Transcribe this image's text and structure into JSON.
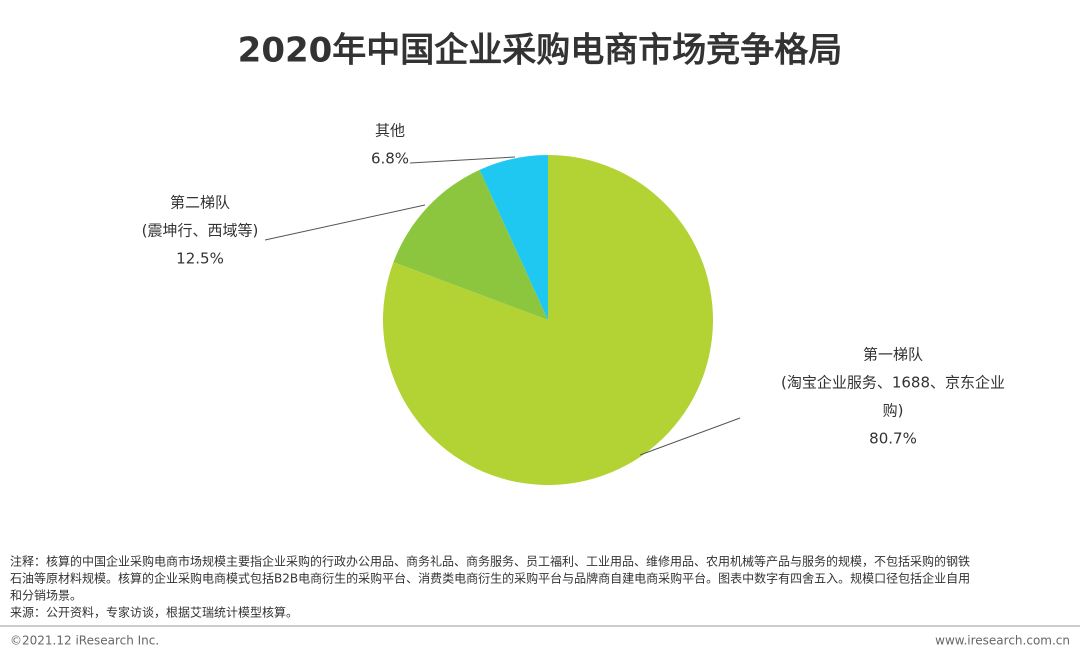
{
  "chart_data": {
    "type": "pie",
    "title": "2020年中国企业采购电商市场竞争格局",
    "categories": [
      "第一梯队",
      "第二梯队",
      "其他"
    ],
    "category_details": [
      [
        "(淘宝企业服务、1688、京东企业",
        "购)"
      ],
      [
        "(震坤行、西域等)"
      ],
      []
    ],
    "values": [
      80.7,
      12.5,
      6.8
    ],
    "value_labels": [
      "80.7%",
      "12.5%",
      "6.8%"
    ],
    "colors": [
      "#b3d234",
      "#8cc63f",
      "#1ec8f0"
    ]
  },
  "notes": [
    "注释：核算的中国企业采购电商市场规模主要指企业采购的行政办公用品、商务礼品、商务服务、员工福利、工业用品、维修用品、农用机械等产品与服务的规模，不包括采购的钢铁",
    "石油等原材料规模。核算的企业采购电商模式包括B2B电商衍生的采购平台、消费类电商衍生的采购平台与品牌商自建电商采购平台。图表中数字有四舍五入。规模口径包括企业自用",
    "和分销场景。"
  ],
  "source": "来源：公开资料，专家访谈，根据艾瑞统计模型核算。",
  "footer": {
    "copyright": "©2021.12 iResearch Inc.",
    "website": "www.iresearch.com.cn"
  }
}
